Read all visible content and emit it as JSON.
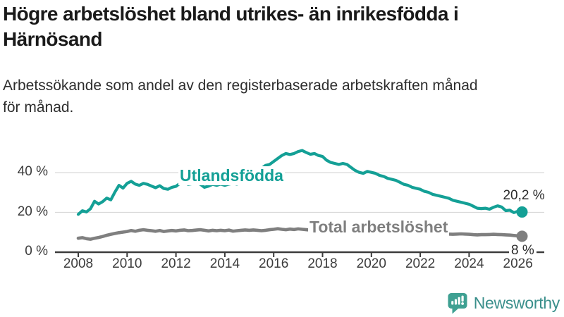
{
  "header": {
    "title": "Högre arbetslöshet bland utrikes- än inrikesfödda i\nHärnösand",
    "subtitle": "Arbetssökande som andel av den registerbaserade arbetskraften månad\nför månad."
  },
  "footer": {
    "brand": "Newsworthy",
    "brand_icon": "chart-speech-bubble-icon",
    "brand_teal": "#3ea092",
    "brand_text_color": "#3a8f8b"
  },
  "colors": {
    "utlandsfodda": "#14a096",
    "total": "#7f7f7f",
    "grid": "#d9d9d9",
    "axis": "#3c3c3c",
    "value_label": "#2b2b2b"
  },
  "chart_data": {
    "type": "line",
    "title": "Högre arbetslöshet bland utrikes- än inrikesfödda i Härnösand",
    "subtitle": "Arbetssökande som andel av den registerbaserade arbetskraften månad för månad.",
    "xlabel": "",
    "ylabel": "",
    "x_start": 2008,
    "x_step_years": 0.16667,
    "xlim": [
      2008,
      2026.3
    ],
    "ylim": [
      0,
      55
    ],
    "x_ticks": [
      2008,
      2010,
      2012,
      2014,
      2016,
      2018,
      2020,
      2022,
      2024,
      2026
    ],
    "y_ticks": [
      0,
      20,
      40
    ],
    "y_tick_labels": [
      "0 %",
      "20 %",
      "40 %"
    ],
    "grid": "horizontal",
    "legend_position": "inline-labels",
    "series": [
      {
        "name": "Utlandsfödda",
        "color": "#14a096",
        "end_value": 20.2,
        "end_label": "20,2 %",
        "values": [
          19.0,
          20.8,
          20.2,
          21.8,
          25.6,
          24.2,
          25.4,
          27.2,
          26.3,
          30.2,
          33.6,
          32.2,
          34.6,
          35.6,
          34.2,
          33.6,
          34.6,
          34.1,
          33.2,
          32.4,
          33.4,
          32.0,
          31.6,
          32.6,
          33.1,
          34.6,
          35.4,
          34.1,
          34.4,
          35.1,
          34.1,
          32.6,
          33.2,
          34.1,
          33.6,
          34.2,
          33.6,
          34.2,
          34.6,
          34.2,
          35.2,
          36.6,
          38.1,
          39.6,
          41.1,
          42.1,
          43.6,
          44.1,
          45.6,
          47.1,
          48.6,
          49.6,
          49.1,
          49.6,
          50.6,
          51.1,
          50.1,
          49.2,
          49.6,
          48.6,
          48.1,
          46.2,
          45.1,
          44.6,
          44.1,
          44.6,
          44.1,
          42.6,
          41.1,
          40.1,
          39.6,
          40.6,
          40.1,
          39.6,
          38.6,
          38.1,
          37.1,
          36.6,
          36.1,
          35.1,
          34.1,
          33.6,
          32.6,
          32.1,
          31.6,
          30.6,
          30.1,
          29.1,
          28.6,
          28.1,
          27.6,
          27.1,
          26.1,
          25.6,
          25.1,
          24.6,
          24.1,
          23.1,
          22.1,
          21.9,
          22.1,
          21.6,
          22.6,
          23.3,
          22.7,
          20.9,
          21.1,
          19.9,
          20.6,
          20.2
        ]
      },
      {
        "name": "Total arbetslöshet",
        "color": "#7f7f7f",
        "end_value": 8,
        "end_label": "8 %",
        "values": [
          7.0,
          7.3,
          6.8,
          6.5,
          7.0,
          7.4,
          7.9,
          8.5,
          9.0,
          9.4,
          9.8,
          10.1,
          10.4,
          10.9,
          10.5,
          11.0,
          11.3,
          11.0,
          10.8,
          10.5,
          10.9,
          10.4,
          10.7,
          10.9,
          10.7,
          11.0,
          11.2,
          10.8,
          10.9,
          11.1,
          11.3,
          11.0,
          10.7,
          11.0,
          10.8,
          11.0,
          10.8,
          11.1,
          10.6,
          10.8,
          11.0,
          11.2,
          11.0,
          11.2,
          11.0,
          10.8,
          11.0,
          11.3,
          11.5,
          11.8,
          11.5,
          11.3,
          11.6,
          11.4,
          11.7,
          11.5,
          11.3,
          11.1,
          11.0,
          10.9,
          10.8,
          10.6,
          10.4,
          10.5,
          10.6,
          10.4,
          10.3,
          10.1,
          10.0,
          10.1,
          10.2,
          10.4,
          10.5,
          10.8,
          11.0,
          11.2,
          11.3,
          11.4,
          11.5,
          11.2,
          11.0,
          10.8,
          10.5,
          10.3,
          10.2,
          10.0,
          9.8,
          9.6,
          9.5,
          9.4,
          9.3,
          9.1,
          9.0,
          9.1,
          9.2,
          9.1,
          9.0,
          8.8,
          8.7,
          8.8,
          8.8,
          8.9,
          9.0,
          8.9,
          8.8,
          8.7,
          8.6,
          8.4,
          8.2,
          8.0
        ]
      }
    ]
  }
}
